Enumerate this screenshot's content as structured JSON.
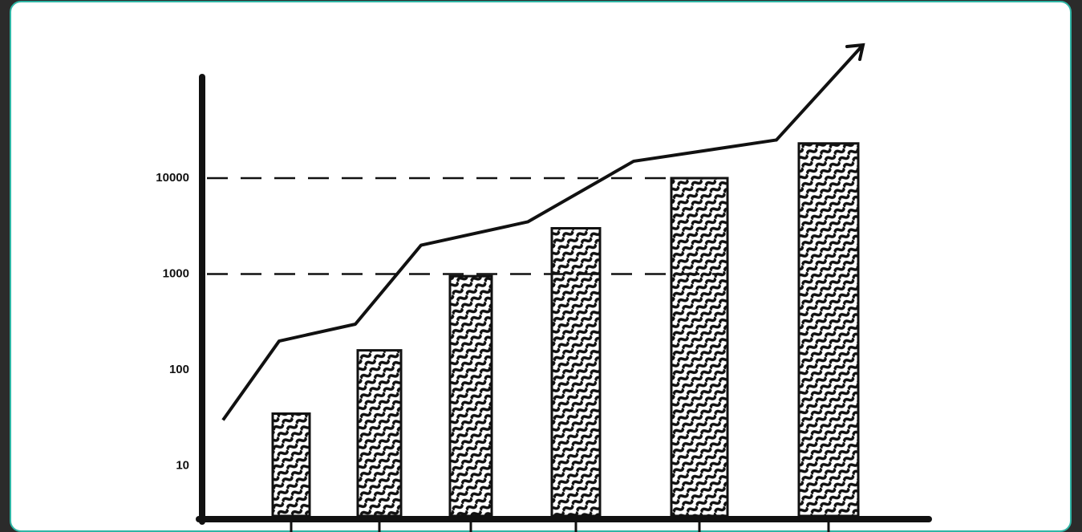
{
  "chart_data": [
    {
      "type": "bar",
      "categories": [
        null,
        null,
        null,
        null,
        null,
        null
      ],
      "values": [
        35,
        160,
        950,
        3000,
        10000,
        23000
      ],
      "color": "#111111",
      "ylim": [
        3,
        60000
      ],
      "yticks": [
        10,
        100,
        1000,
        10000
      ],
      "log_scale": true
    },
    {
      "type": "line",
      "categories": [
        null,
        null,
        null,
        null,
        null,
        null,
        null
      ],
      "values": [
        30,
        200,
        300,
        2000,
        3500,
        15000,
        25000
      ],
      "color": "#111111",
      "ylim": [
        3,
        60000
      ],
      "log_scale": true
    }
  ]
}
